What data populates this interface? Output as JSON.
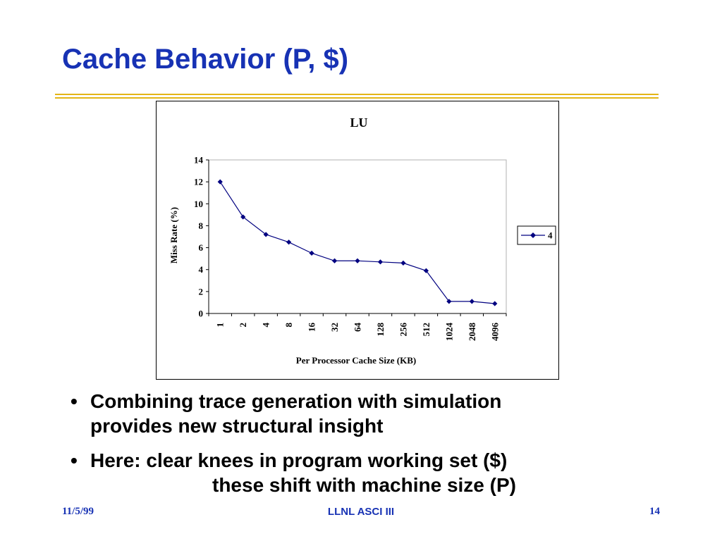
{
  "slide": {
    "title": "Cache Behavior (P, $)",
    "accent_color": "#1732b4",
    "rule_color": "#e3b516"
  },
  "bullets": [
    {
      "line1": "Combining trace generation with simulation",
      "line2": "provides new structural insight"
    },
    {
      "line1": "Here: clear knees in program working set ($)",
      "line2": "these shift with machine size (P)"
    }
  ],
  "footer": {
    "date": "11/5/99",
    "center": "LLNL ASCI III",
    "page": "14"
  },
  "chart_data": {
    "type": "line",
    "title": "LU",
    "xlabel": "Per Processor Cache Size (KB)",
    "ylabel": "Miss Rate (%)",
    "categories": [
      "1",
      "2",
      "4",
      "8",
      "16",
      "32",
      "64",
      "128",
      "256",
      "512",
      "1024",
      "2048",
      "4096"
    ],
    "series": [
      {
        "name": "4",
        "color": "#000080",
        "marker": "diamond",
        "values": [
          12.0,
          8.8,
          7.2,
          6.5,
          5.5,
          4.8,
          4.8,
          4.7,
          4.6,
          3.9,
          1.1,
          1.1,
          0.9
        ]
      }
    ],
    "ylim": [
      0,
      14
    ],
    "yticks": [
      0,
      2,
      4,
      6,
      8,
      10,
      12,
      14
    ],
    "grid": false,
    "legend": "right"
  }
}
